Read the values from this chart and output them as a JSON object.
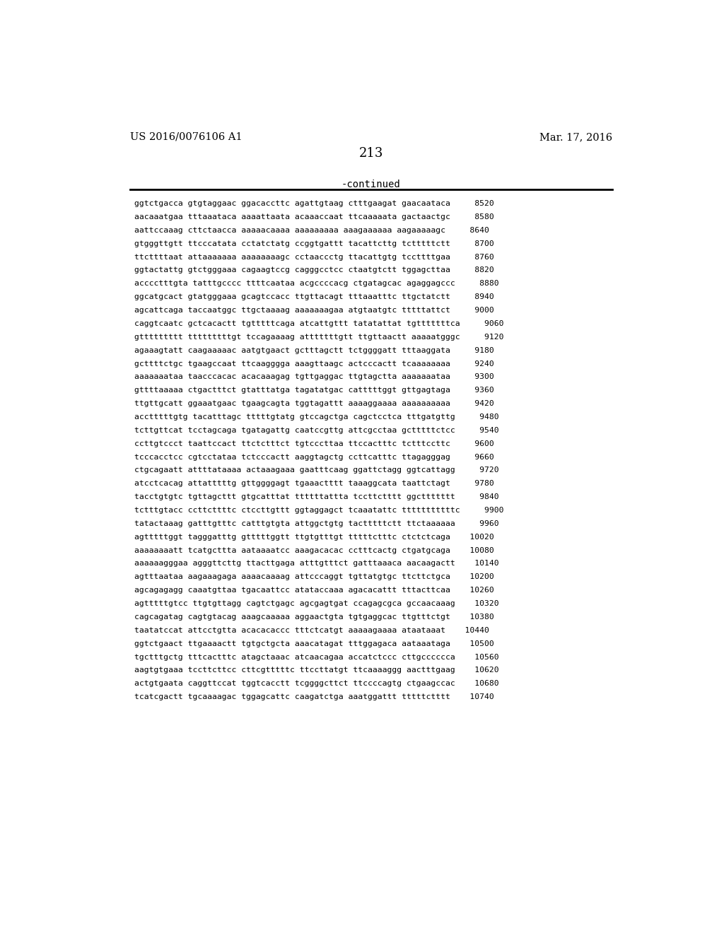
{
  "header_left": "US 2016/0076106 A1",
  "header_right": "Mar. 17, 2016",
  "page_number": "213",
  "continued_label": "-continued",
  "background_color": "#ffffff",
  "text_color": "#000000",
  "lines": [
    "ggtctgacca gtgtaggaac ggacaccttc agattgtaag ctttgaagat gaacaataca     8520",
    "aacaaatgaa tttaaataca aaaattaata acaaaccaat ttcaaaaata gactaactgc     8580",
    "aattccaaag cttctaacca aaaaacaaaa aaaaaaaaa aaagaaaaaa aagaaaaagc     8640",
    "gtgggttgtt ttcccatata cctatctatg ccggtgattt tacattcttg tctttttctt     8700",
    "ttcttttaat attaaaaaaa aaaaaaaagc cctaaccctg ttacattgtg tccttttgaa     8760",
    "ggtactattg gtctgggaaa cagaagtccg cagggcctcc ctaatgtctt tggagcttaa     8820",
    "acccctttgta tatttgcccc ttttcaataa acgccccacg ctgatagcac agaggagccc     8880",
    "ggcatgcact gtatgggaaa gcagtccacc ttgttacagt tttaaatttc ttgctatctt     8940",
    "agcattcaga taccaatggc ttgctaaaag aaaaaaagaa atgtaatgtc tttttattct     9000",
    "caggtcaatc gctcacactt tgtttttcaga atcattgttt tatatattat tgtttttttca     9060",
    "gttttttttt tttttttttgt tccagaaaag atttttttgtt ttgttaactt aaaaatgggc     9120",
    "agaaagtatt caagaaaaac aatgtgaact gctttagctt tctggggatt tttaaggata     9180",
    "gcttttctgc tgaagccaat ttcaagggga aaagttaagc actcccactt tcaaaaaaaa     9240",
    "aaaaaaataa taacccacac acacaaagag tgttgaggac ttgtagctta aaaaaaataa     9300",
    "gttttaaaaa ctgactttct gtatttatga tagatatgac catttttggt gttgagtaga     9360",
    "ttgttgcatt ggaaatgaac tgaagcagta tggtagattt aaaaggaaaa aaaaaaaaaa     9420",
    "acctttttgtg tacatttagc tttttgtatg gtccagctga cagctcctca tttgatgttg     9480",
    "tcttgttcat tcctagcaga tgatagattg caatccgttg attcgcctaa gctttttctcc     9540",
    "ccttgtccct taattccact ttctctttct tgtcccttaa ttccactttc tctttccttc     9600",
    "tcccacctcc cgtcctataa tctcccactt aaggtagctg ccttcatttc ttagagggag     9660",
    "ctgcagaatt attttataaaa actaaagaaa gaatttcaag ggattctagg ggtcattagg     9720",
    "atcctcacag attatttttg gttggggagt tgaaactttt taaaggcata taattctagt     9780",
    "tacctgtgtc tgttagcttt gtgcatttat ttttttattta tccttctttt ggcttttttt     9840",
    "tctttgtacc ccttcttttc ctccttgttt ggtaggagct tcaaatattc tttttttttttc     9900",
    "tatactaaag gatttgtttc catttgtgta attggctgtg tactttttctt ttctaaaaaa     9960",
    "agtttttggt tagggatttg gtttttggtt ttgtgtttgt tttttctttc ctctctcaga    10020",
    "aaaaaaaatt tcatgcttta aataaaatcc aaagacacac cctttcactg ctgatgcaga    10080",
    "aaaaaagggaa agggttcttg ttacttgaga atttgtttct gatttaaaca aacaagactt    10140",
    "agtttaataa aagaaagaga aaaacaaaag attcccaggt tgttatgtgc ttcttctgca    10200",
    "agcagagagg caaatgttaa tgacaattcc atataccaaa agacacattt tttacttcaa    10260",
    "agtttttgtcc ttgtgttagg cagtctgagc agcgagtgat ccagagcgca gccaacaaag    10320",
    "cagcagatag cagtgtacag aaagcaaaaa aggaactgta tgtgaggcac ttgtttctgt    10380",
    "taatatccat attcctgtta acacacaccc tttctcatgt aaaaagaaaa ataataaat    10440",
    "ggtctgaact ttgaaaactt tgtgctgcta aaacatagat tttggagaca aataaataga    10500",
    "tgctttgctg tttcactttc atagctaaac atcaacagaa accatctccc cttgcccccca    10560",
    "aagtgtgaaa tccttcttcc cttcgtttttc ttccttatgt ttcaaaaggg aactttgaag    10620",
    "actgtgaata caggttccat tggtcacctt tcggggcttct ttccccagtg ctgaagccac    10680",
    "tcatcgactt tgcaaaagac tggagcattc caagatctga aaatggattt tttttctttt    10740"
  ]
}
